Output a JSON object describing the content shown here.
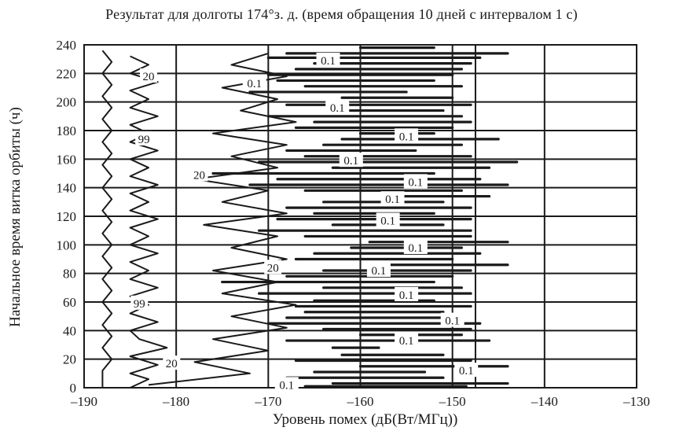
{
  "chart_data": {
    "type": "line",
    "title": "Результат для долготы  174°з. д.  (время обращения 10 дней с интервалом 1 с)",
    "xlabel": "Уровень помех (дБ(Вт/МГц))",
    "ylabel": "Начальное время витка орбиты (ч)",
    "xlim": [
      -190,
      -130
    ],
    "ylim": [
      0,
      240
    ],
    "x_ticks": [
      -190,
      -180,
      -170,
      -160,
      -150,
      -140,
      -130
    ],
    "x_tick_labels": [
      "–190",
      "–180",
      "–170",
      "–160",
      "–150",
      "–140",
      "–130"
    ],
    "y_ticks": [
      0,
      20,
      40,
      60,
      80,
      100,
      120,
      140,
      160,
      180,
      200,
      220,
      240
    ],
    "y_tick_labels": [
      "0",
      "20",
      "40",
      "60",
      "80",
      "100",
      "120",
      "140",
      "160",
      "180",
      "200",
      "220",
      "240"
    ],
    "grid": true,
    "vertical_reference_lines": [
      -147.5
    ],
    "series": [
      {
        "name": "",
        "points": [
          [
            -188,
            0
          ],
          [
            -188,
            12
          ],
          [
            -187,
            20
          ],
          [
            -188,
            28
          ],
          [
            -187,
            36
          ],
          [
            -188,
            44
          ],
          [
            -187,
            52
          ],
          [
            -188,
            60
          ],
          [
            -187,
            68
          ],
          [
            -188,
            76
          ],
          [
            -187,
            84
          ],
          [
            -188,
            92
          ],
          [
            -187,
            100
          ],
          [
            -188,
            108
          ],
          [
            -187,
            116
          ],
          [
            -188,
            124
          ],
          [
            -187,
            132
          ],
          [
            -188,
            140
          ],
          [
            -187,
            148
          ],
          [
            -188,
            156
          ],
          [
            -187,
            164
          ],
          [
            -188,
            172
          ],
          [
            -187,
            180
          ],
          [
            -188,
            188
          ],
          [
            -187,
            196
          ],
          [
            -188,
            204
          ],
          [
            -187,
            212
          ],
          [
            -188,
            220
          ],
          [
            -187,
            228
          ],
          [
            -188,
            236
          ]
        ]
      },
      {
        "name": "",
        "points": [
          [
            -185,
            0
          ],
          [
            -183,
            6
          ],
          [
            -185,
            10
          ],
          [
            -182,
            16
          ],
          [
            -185,
            22
          ],
          [
            -181,
            28
          ],
          [
            -184,
            34
          ],
          [
            -185,
            40
          ],
          [
            -182,
            46
          ],
          [
            -185,
            52
          ],
          [
            -183,
            58
          ],
          [
            -185,
            64
          ],
          [
            -182,
            70
          ],
          [
            -185,
            76
          ],
          [
            -183,
            82
          ],
          [
            -185,
            88
          ],
          [
            -182,
            94
          ],
          [
            -185,
            100
          ],
          [
            -183,
            106
          ],
          [
            -185,
            112
          ],
          [
            -182,
            118
          ],
          [
            -185,
            124
          ],
          [
            -183,
            130
          ],
          [
            -185,
            136
          ],
          [
            -182,
            142
          ],
          [
            -185,
            148
          ],
          [
            -183,
            154
          ],
          [
            -185,
            160
          ],
          [
            -182,
            166
          ],
          [
            -185,
            172
          ],
          [
            -183,
            178
          ],
          [
            -185,
            184
          ],
          [
            -182,
            190
          ],
          [
            -185,
            196
          ],
          [
            -183,
            202
          ],
          [
            -185,
            208
          ],
          [
            -182,
            214
          ],
          [
            -185,
            220
          ],
          [
            -183,
            226
          ],
          [
            -185,
            232
          ]
        ]
      },
      {
        "name": "",
        "points": [
          [
            -183,
            2
          ],
          [
            -172,
            10
          ],
          [
            -178,
            18
          ],
          [
            -170,
            26
          ],
          [
            -176,
            34
          ],
          [
            -168,
            42
          ],
          [
            -174,
            50
          ],
          [
            -167,
            58
          ],
          [
            -175,
            66
          ],
          [
            -169,
            74
          ],
          [
            -176,
            82
          ],
          [
            -168,
            90
          ],
          [
            -174,
            98
          ],
          [
            -169,
            106
          ],
          [
            -177,
            114
          ],
          [
            -168,
            122
          ],
          [
            -175,
            130
          ],
          [
            -170,
            138
          ],
          [
            -178,
            146
          ],
          [
            -169,
            154
          ],
          [
            -174,
            162
          ],
          [
            -168,
            170
          ],
          [
            -176,
            178
          ],
          [
            -167,
            186
          ],
          [
            -173,
            194
          ],
          [
            -169,
            202
          ],
          [
            -175,
            210
          ],
          [
            -168,
            218
          ],
          [
            -174,
            226
          ],
          [
            -170,
            234
          ]
        ]
      }
    ],
    "contour_labels": [
      {
        "text": "20",
        "x": -183,
        "y": 218
      },
      {
        "text": "0.1",
        "x": -163.5,
        "y": 229
      },
      {
        "text": "0.1",
        "x": -171.5,
        "y": 213
      },
      {
        "text": "0.1",
        "x": -162.5,
        "y": 196
      },
      {
        "text": "99",
        "x": -183.5,
        "y": 174
      },
      {
        "text": "0.1",
        "x": -155,
        "y": 176
      },
      {
        "text": "0.1",
        "x": -161,
        "y": 159
      },
      {
        "text": "20",
        "x": -177.5,
        "y": 149
      },
      {
        "text": "0.1",
        "x": -154,
        "y": 144
      },
      {
        "text": "0.1",
        "x": -156.5,
        "y": 132
      },
      {
        "text": "0.1",
        "x": -157,
        "y": 117
      },
      {
        "text": "0.1",
        "x": -154,
        "y": 98
      },
      {
        "text": "20",
        "x": -169.5,
        "y": 84
      },
      {
        "text": "0.1",
        "x": -158,
        "y": 82
      },
      {
        "text": "0.1",
        "x": -155,
        "y": 65
      },
      {
        "text": "99",
        "x": -184,
        "y": 59
      },
      {
        "text": "0.1",
        "x": -150,
        "y": 47
      },
      {
        "text": "0.1",
        "x": -155,
        "y": 33
      },
      {
        "text": "20",
        "x": -180.5,
        "y": 17
      },
      {
        "text": "0.1",
        "x": -148.5,
        "y": 12
      },
      {
        "text": "0.1",
        "x": -168,
        "y": 2
      }
    ],
    "bands": [
      {
        "y": 1,
        "x": [
          -166,
          -148.5
        ]
      },
      {
        "y": 3,
        "x": [
          -163,
          -144
        ]
      },
      {
        "y": 7,
        "x": [
          -168,
          -151
        ]
      },
      {
        "y": 11,
        "x": [
          -165,
          -153
        ]
      },
      {
        "y": 15,
        "x": [
          -160,
          -144
        ]
      },
      {
        "y": 19,
        "x": [
          -167,
          -148
        ]
      },
      {
        "y": 23,
        "x": [
          -162,
          -151
        ]
      },
      {
        "y": 28,
        "x": [
          -163,
          -158
        ]
      },
      {
        "y": 33,
        "x": [
          -168,
          -146
        ]
      },
      {
        "y": 37,
        "x": [
          -160,
          -149
        ]
      },
      {
        "y": 41,
        "x": [
          -164,
          -148
        ]
      },
      {
        "y": 45,
        "x": [
          -170,
          -147
        ]
      },
      {
        "y": 49,
        "x": [
          -168,
          -150
        ]
      },
      {
        "y": 53,
        "x": [
          -166,
          -151
        ]
      },
      {
        "y": 57,
        "x": [
          -167,
          -148
        ]
      },
      {
        "y": 61,
        "x": [
          -165,
          -152
        ]
      },
      {
        "y": 66,
        "x": [
          -171,
          -148
        ]
      },
      {
        "y": 70,
        "x": [
          -164,
          -149
        ]
      },
      {
        "y": 74,
        "x": [
          -175,
          -152
        ]
      },
      {
        "y": 78,
        "x": [
          -168,
          -150
        ]
      },
      {
        "y": 82,
        "x": [
          -164,
          -148
        ]
      },
      {
        "y": 86,
        "x": [
          -159,
          -144
        ]
      },
      {
        "y": 90,
        "x": [
          -167,
          -150
        ]
      },
      {
        "y": 94,
        "x": [
          -165,
          -147
        ]
      },
      {
        "y": 98,
        "x": [
          -161,
          -149
        ]
      },
      {
        "y": 102,
        "x": [
          -159,
          -144
        ]
      },
      {
        "y": 106,
        "x": [
          -166,
          -148
        ]
      },
      {
        "y": 110,
        "x": [
          -171,
          -148
        ]
      },
      {
        "y": 114,
        "x": [
          -163,
          -151
        ]
      },
      {
        "y": 118,
        "x": [
          -169,
          -148
        ]
      },
      {
        "y": 122,
        "x": [
          -165,
          -152
        ]
      },
      {
        "y": 126,
        "x": [
          -168,
          -148
        ]
      },
      {
        "y": 130,
        "x": [
          -164,
          -151
        ]
      },
      {
        "y": 134,
        "x": [
          -157,
          -146
        ]
      },
      {
        "y": 138,
        "x": [
          -166,
          -149
        ]
      },
      {
        "y": 142,
        "x": [
          -172,
          -144
        ]
      },
      {
        "y": 146,
        "x": [
          -169,
          -147
        ]
      },
      {
        "y": 150,
        "x": [
          -176,
          -152
        ]
      },
      {
        "y": 154,
        "x": [
          -163,
          -146
        ]
      },
      {
        "y": 158,
        "x": [
          -171,
          -143
        ]
      },
      {
        "y": 162,
        "x": [
          -166,
          -148
        ]
      },
      {
        "y": 166,
        "x": [
          -168,
          -154
        ]
      },
      {
        "y": 170,
        "x": [
          -164,
          -149
        ]
      },
      {
        "y": 174,
        "x": [
          -162,
          -145
        ]
      },
      {
        "y": 178,
        "x": [
          -160,
          -152
        ]
      },
      {
        "y": 182,
        "x": [
          -167,
          -150
        ]
      },
      {
        "y": 186,
        "x": [
          -165,
          -148
        ]
      },
      {
        "y": 190,
        "x": [
          -170,
          -149
        ]
      },
      {
        "y": 194,
        "x": [
          -163,
          -151
        ]
      },
      {
        "y": 198,
        "x": [
          -168,
          -148
        ]
      },
      {
        "y": 203,
        "x": [
          -162,
          -150
        ]
      },
      {
        "y": 207,
        "x": [
          -172,
          -155
        ]
      },
      {
        "y": 211,
        "x": [
          -166,
          -149
        ]
      },
      {
        "y": 215,
        "x": [
          -169,
          -152
        ]
      },
      {
        "y": 219,
        "x": [
          -170,
          -150
        ]
      },
      {
        "y": 223,
        "x": [
          -167,
          -149
        ]
      },
      {
        "y": 227,
        "x": [
          -165,
          -148
        ]
      },
      {
        "y": 231,
        "x": [
          -170,
          -147
        ]
      },
      {
        "y": 234,
        "x": [
          -168,
          -144
        ]
      },
      {
        "y": 238,
        "x": [
          -160,
          -152
        ]
      }
    ]
  }
}
